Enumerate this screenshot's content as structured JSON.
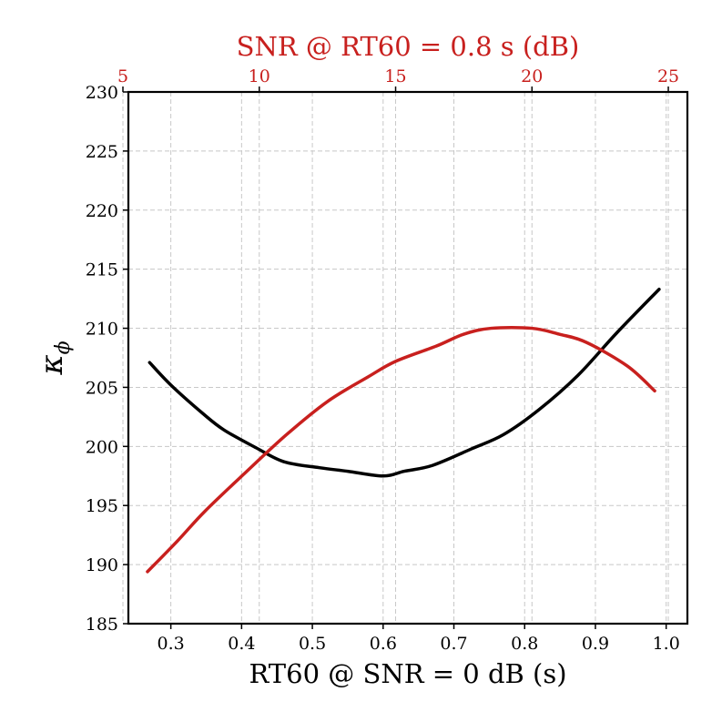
{
  "chart_data": {
    "type": "line",
    "title": "",
    "xlabel": "RT60 @ SNR = 0 dB (s)",
    "ylabel": "κ",
    "ylabel_subscript": "ϕ",
    "x2label": "SNR @ RT60 = 0.8 s (dB)",
    "xlim": [
      0.24,
      1.03
    ],
    "x2lim": [
      5.2,
      25.7
    ],
    "ylim": [
      185,
      230
    ],
    "grid": true,
    "xticks": [
      0.3,
      0.4,
      0.5,
      0.6,
      0.7,
      0.8,
      0.9,
      1.0
    ],
    "xtick_labels": [
      "0.3",
      "0.4",
      "0.5",
      "0.6",
      "0.7",
      "0.8",
      "0.9",
      "1.0"
    ],
    "x2ticks": [
      5,
      10,
      15,
      20,
      25
    ],
    "x2tick_labels": [
      "5",
      "10",
      "15",
      "20",
      "25"
    ],
    "yticks": [
      185,
      190,
      195,
      200,
      205,
      210,
      215,
      220,
      225,
      230
    ],
    "ytick_labels": [
      "185",
      "190",
      "195",
      "200",
      "205",
      "210",
      "215",
      "220",
      "225",
      "230"
    ],
    "series": [
      {
        "name": "RT60 @ SNR = 0 dB",
        "axis": "bottom",
        "color": "#000000",
        "x": [
          0.27,
          0.3,
          0.345,
          0.375,
          0.42,
          0.46,
          0.51,
          0.55,
          0.6,
          0.63,
          0.67,
          0.725,
          0.77,
          0.82,
          0.875,
          0.93,
          0.99
        ],
        "y": [
          207.1,
          205.2,
          202.8,
          201.4,
          199.9,
          198.7,
          198.2,
          197.9,
          197.5,
          197.9,
          198.4,
          199.8,
          201.0,
          203.1,
          206.0,
          209.6,
          213.3
        ]
      },
      {
        "name": "SNR @ RT60 = 0.8 s",
        "axis": "top",
        "color": "#c8201e",
        "x": [
          5.9,
          7.0,
          8.0,
          9.5,
          11.0,
          12.5,
          14.0,
          15.0,
          16.5,
          17.5,
          18.5,
          20.0,
          21.0,
          22.0,
          23.5,
          24.5
        ],
        "y": [
          189.4,
          192.0,
          194.5,
          197.8,
          201.0,
          203.8,
          205.9,
          207.2,
          208.5,
          209.5,
          210.0,
          210.0,
          209.5,
          208.8,
          206.8,
          204.7
        ]
      }
    ]
  }
}
